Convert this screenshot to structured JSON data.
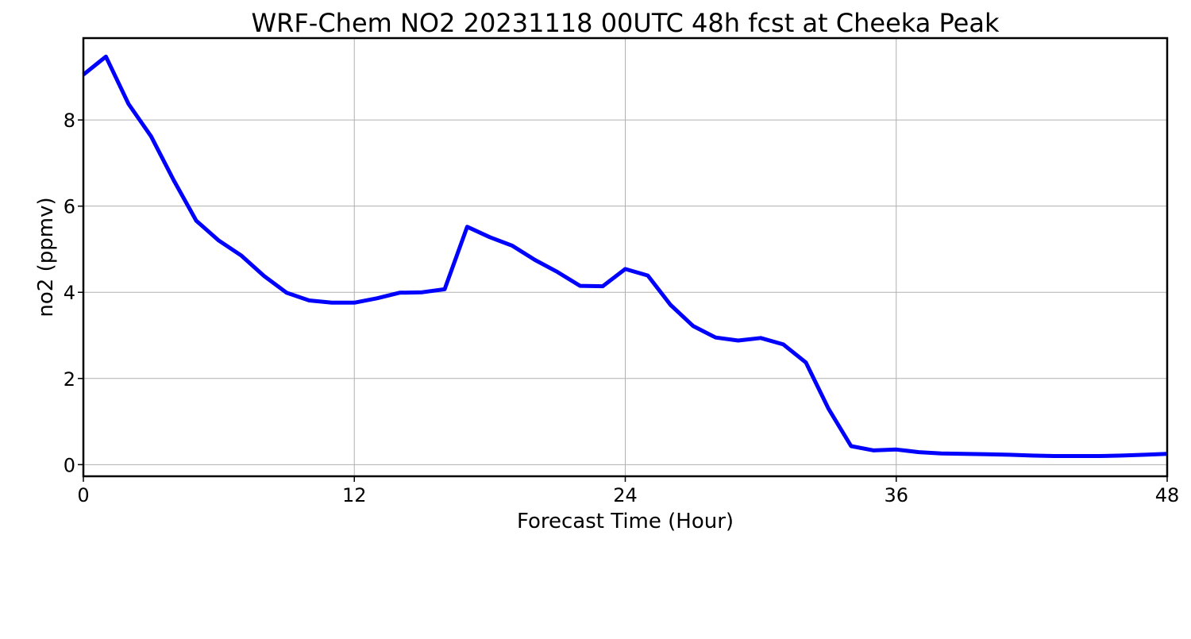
{
  "chart_data": {
    "type": "line",
    "title": "WRF-Chem NO2  20231118 00UTC 48h fcst at Cheeka Peak",
    "xlabel": "Forecast Time (Hour)",
    "ylabel": "no2  (ppmv)",
    "xlim": [
      0,
      48
    ],
    "ylim": [
      -0.27,
      9.9
    ],
    "xticks": [
      0,
      12,
      24,
      36,
      48
    ],
    "yticks": [
      0,
      2,
      4,
      6,
      8
    ],
    "grid": true,
    "line_color": "#0000ff",
    "series": [
      {
        "x": [
          0,
          1,
          2,
          3,
          4,
          5,
          6,
          7,
          8,
          9,
          10,
          11,
          12,
          13,
          14,
          15,
          16,
          17,
          18,
          19,
          20,
          21,
          22,
          23,
          24,
          25,
          26,
          27,
          28,
          29,
          30,
          31,
          32,
          33,
          34,
          35,
          36,
          37,
          38,
          39,
          40,
          41,
          42,
          43,
          44,
          45,
          46,
          47,
          48
        ],
        "values": [
          9.05,
          9.47,
          8.37,
          7.62,
          6.6,
          5.66,
          5.2,
          4.85,
          4.38,
          3.99,
          3.81,
          3.76,
          3.76,
          3.86,
          3.99,
          4.0,
          4.07,
          5.52,
          5.28,
          5.08,
          4.75,
          4.47,
          4.15,
          4.14,
          4.54,
          4.39,
          3.71,
          3.22,
          2.95,
          2.88,
          2.94,
          2.79,
          2.37,
          1.3,
          0.43,
          0.33,
          0.35,
          0.29,
          0.26,
          0.25,
          0.24,
          0.23,
          0.21,
          0.2,
          0.2,
          0.2,
          0.21,
          0.23,
          0.25
        ]
      }
    ]
  }
}
